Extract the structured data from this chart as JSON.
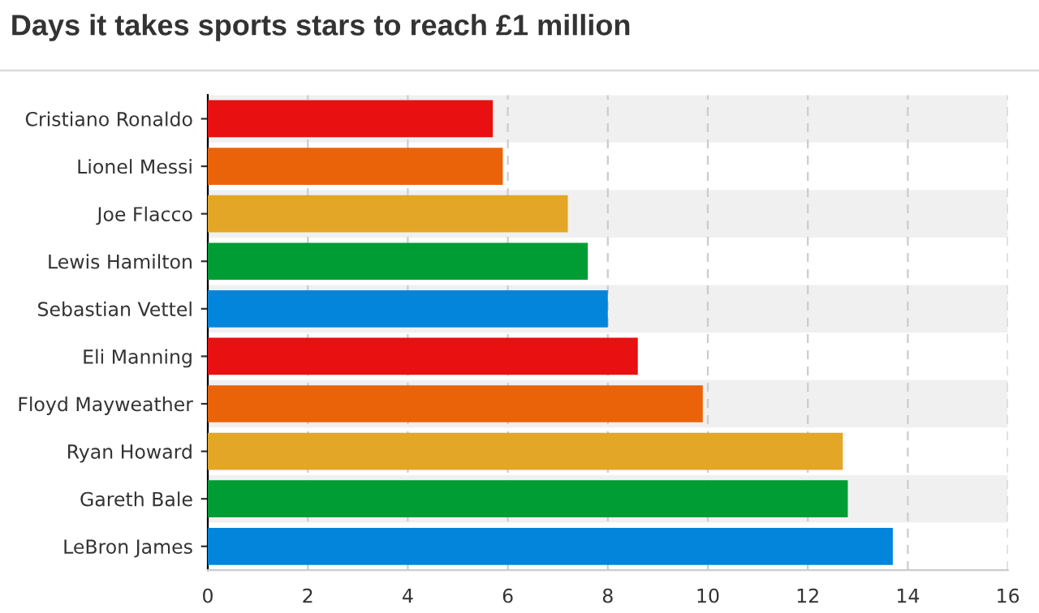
{
  "chart_data": {
    "type": "bar",
    "orientation": "horizontal",
    "title": "Days it takes sports stars to reach £1 million",
    "categories": [
      "Cristiano Ronaldo",
      "Lionel Messi",
      "Joe Flacco",
      "Lewis Hamilton",
      "Sebastian Vettel",
      "Eli Manning",
      "Floyd Mayweather",
      "Ryan Howard",
      "Gareth Bale",
      "LeBron James"
    ],
    "values": [
      5.7,
      5.9,
      7.2,
      7.6,
      8.0,
      8.6,
      9.9,
      12.7,
      12.8,
      13.7
    ],
    "colors": [
      "#e81010",
      "#eb6308",
      "#e3a626",
      "#009d34",
      "#0485dc",
      "#e81010",
      "#eb6308",
      "#e3a626",
      "#009d34",
      "#0485dc"
    ],
    "xlim": [
      0,
      16
    ],
    "xticks": [
      0,
      2,
      4,
      6,
      8,
      10,
      12,
      14,
      16
    ],
    "grid": "x"
  }
}
